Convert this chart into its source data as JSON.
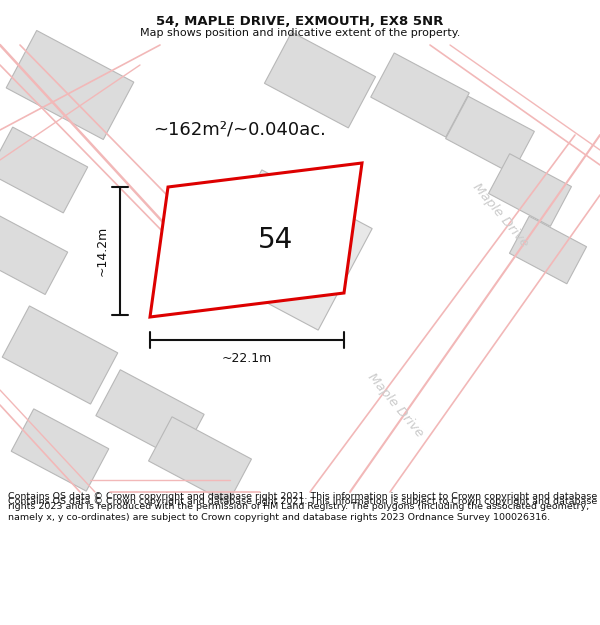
{
  "title": "54, MAPLE DRIVE, EXMOUTH, EX8 5NR",
  "subtitle": "Map shows position and indicative extent of the property.",
  "area_text": "~162m²/~0.040ac.",
  "width_text": "~22.1m",
  "height_text": "~14.2m",
  "house_number": "54",
  "footer": "Contains OS data © Crown copyright and database right 2021. This information is subject to Crown copyright and database rights 2023 and is reproduced with the permission of HM Land Registry. The polygons (including the associated geometry, namely x, y co-ordinates) are subject to Crown copyright and database rights 2023 Ordnance Survey 100026316.",
  "bg_color": "#ffffff",
  "title_fontsize": 9.5,
  "subtitle_fontsize": 8,
  "area_fontsize": 13,
  "footer_fontsize": 6.8,
  "road_label_color": "#cccccc",
  "light_pink": "#f2b8b8",
  "dark_red": "#dd0000",
  "gray_fill": "#dcdcdc",
  "road_label": "Maple Drive"
}
